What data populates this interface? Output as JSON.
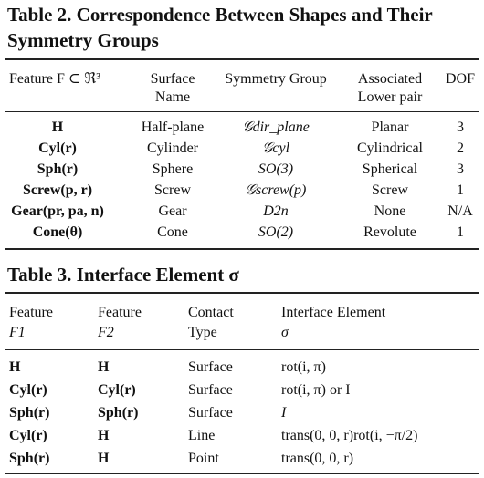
{
  "table2": {
    "title_line1": "Table 2. Correspondence Between Shapes and Their",
    "title_line2": "Symmetry Groups",
    "headers": {
      "feature": "Feature F ⊂ ℜ³",
      "surface_line1": "Surface",
      "surface_line2": "Name",
      "symmetry": "Symmetry Group",
      "lower_line1": "Associated",
      "lower_line2": "Lower pair",
      "dof": "DOF"
    },
    "rows": [
      {
        "feature": "H",
        "surface": "Half-plane",
        "group": "𝒢dir_plane",
        "pair": "Planar",
        "dof": "3"
      },
      {
        "feature": "Cyl(r)",
        "surface": "Cylinder",
        "group": "𝒢cyl",
        "pair": "Cylindrical",
        "dof": "2"
      },
      {
        "feature": "Sph(r)",
        "surface": "Sphere",
        "group": "SO(3)",
        "pair": "Spherical",
        "dof": "3"
      },
      {
        "feature": "Screw(p, r)",
        "surface": "Screw",
        "group": "𝒢screw(p)",
        "pair": "Screw",
        "dof": "1"
      },
      {
        "feature": "Gear(pr, pa, n)",
        "surface": "Gear",
        "group": "D2n",
        "pair": "None",
        "dof": "N/A"
      },
      {
        "feature": "Cone(θ)",
        "surface": "Cone",
        "group": "SO(2)",
        "pair": "Revolute",
        "dof": "1"
      }
    ]
  },
  "table3": {
    "title": "Table 3. Interface Element σ",
    "headers": {
      "f1_line1": "Feature",
      "f1_line2": "F1",
      "f2_line1": "Feature",
      "f2_line2": "F2",
      "contact_line1": "Contact",
      "contact_line2": "Type",
      "element_line1": "Interface Element",
      "element_line2": "σ"
    },
    "rows": [
      {
        "f1": "H",
        "f2": "H",
        "contact": "Surface",
        "element": "rot(i, π)"
      },
      {
        "f1": "Cyl(r)",
        "f2": "Cyl(r)",
        "contact": "Surface",
        "element": "rot(i, π) or I"
      },
      {
        "f1": "Sph(r)",
        "f2": "Sph(r)",
        "contact": "Surface",
        "element": "I"
      },
      {
        "f1": "Cyl(r)",
        "f2": "H",
        "contact": "Line",
        "element": "trans(0, 0, r)rot(i, −π/2)"
      },
      {
        "f1": "Sph(r)",
        "f2": "H",
        "contact": "Point",
        "element": "trans(0, 0, r)"
      }
    ]
  }
}
